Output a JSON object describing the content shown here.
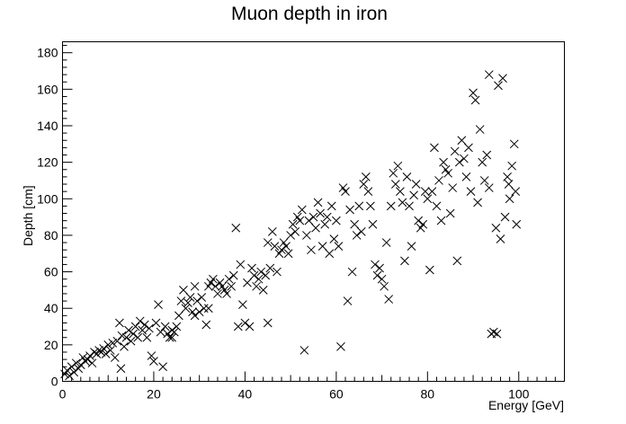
{
  "chart_data": {
    "type": "scatter",
    "title": "Muon depth in iron",
    "xlabel": "Energy [GeV]",
    "ylabel": "Depth [cm]",
    "xlim": [
      0,
      110
    ],
    "ylim": [
      0,
      186
    ],
    "x_ticks": [
      0,
      20,
      40,
      60,
      80,
      100
    ],
    "y_ticks": [
      0,
      20,
      40,
      60,
      80,
      100,
      120,
      140,
      160,
      180
    ],
    "grid": false,
    "legend": "none",
    "marker": "x",
    "marker_color": "#000000",
    "series": [
      {
        "points": [
          [
            0.5,
            4
          ],
          [
            1.0,
            6
          ],
          [
            1.5,
            3
          ],
          [
            2.0,
            8
          ],
          [
            2.5,
            5
          ],
          [
            3.0,
            10
          ],
          [
            3.5,
            7
          ],
          [
            4.0,
            9
          ],
          [
            4.5,
            13
          ],
          [
            5.0,
            11
          ],
          [
            5.5,
            12
          ],
          [
            6.0,
            14
          ],
          [
            6.5,
            10
          ],
          [
            7.0,
            16
          ],
          [
            7.5,
            15
          ],
          [
            8.0,
            17
          ],
          [
            8.5,
            16
          ],
          [
            9.0,
            18
          ],
          [
            9.5,
            15
          ],
          [
            10.0,
            20
          ],
          [
            10.5,
            17
          ],
          [
            11.0,
            21
          ],
          [
            11.5,
            13
          ],
          [
            12.0,
            22
          ],
          [
            12.5,
            32
          ],
          [
            12.8,
            7
          ],
          [
            13.0,
            25
          ],
          [
            13.5,
            19
          ],
          [
            14.0,
            24
          ],
          [
            14.5,
            28
          ],
          [
            15.0,
            22
          ],
          [
            15.5,
            26
          ],
          [
            16.0,
            30
          ],
          [
            16.5,
            24
          ],
          [
            17.0,
            33
          ],
          [
            17.5,
            28
          ],
          [
            18.0,
            31
          ],
          [
            18.5,
            24
          ],
          [
            19.0,
            29
          ],
          [
            19.5,
            14
          ],
          [
            20.0,
            11
          ],
          [
            20.5,
            32
          ],
          [
            21.0,
            42
          ],
          [
            21.5,
            27
          ],
          [
            22.0,
            8
          ],
          [
            22.5,
            30
          ],
          [
            23.0,
            26
          ],
          [
            23.5,
            24
          ],
          [
            24.0,
            28
          ],
          [
            24.5,
            27
          ],
          [
            25.0,
            30
          ],
          [
            25.5,
            36
          ],
          [
            26.0,
            44
          ],
          [
            26.5,
            50
          ],
          [
            27.0,
            40
          ],
          [
            27.5,
            43
          ],
          [
            28.0,
            46
          ],
          [
            28.5,
            38
          ],
          [
            29.0,
            52
          ],
          [
            29.5,
            44
          ],
          [
            30.0,
            38
          ],
          [
            30.5,
            46
          ],
          [
            31.0,
            40
          ],
          [
            31.5,
            31
          ],
          [
            32.0,
            52
          ],
          [
            32.5,
            54
          ],
          [
            33.0,
            56
          ],
          [
            33.5,
            52
          ],
          [
            34.0,
            48
          ],
          [
            34.5,
            54
          ],
          [
            35.0,
            52
          ],
          [
            35.5,
            50
          ],
          [
            36.0,
            48
          ],
          [
            36.5,
            56
          ],
          [
            37.0,
            52
          ],
          [
            37.5,
            58
          ],
          [
            38.0,
            84
          ],
          [
            38.5,
            30
          ],
          [
            39.0,
            64
          ],
          [
            39.5,
            42
          ],
          [
            40.0,
            32
          ],
          [
            40.5,
            54
          ],
          [
            41.0,
            30
          ],
          [
            41.5,
            62
          ],
          [
            42.0,
            58
          ],
          [
            42.5,
            52
          ],
          [
            43.0,
            56
          ],
          [
            43.5,
            60
          ],
          [
            44.0,
            50
          ],
          [
            44.5,
            58
          ],
          [
            45.0,
            76
          ],
          [
            45.5,
            62
          ],
          [
            46.0,
            82
          ],
          [
            46.5,
            74
          ],
          [
            47.0,
            60
          ],
          [
            47.5,
            70
          ],
          [
            48.0,
            72
          ],
          [
            48.5,
            76
          ],
          [
            49.0,
            74
          ],
          [
            49.5,
            70
          ],
          [
            50.0,
            80
          ],
          [
            50.5,
            86
          ],
          [
            51.0,
            82
          ],
          [
            51.5,
            90
          ],
          [
            52.0,
            88
          ],
          [
            52.5,
            94
          ],
          [
            53.0,
            17
          ],
          [
            53.5,
            80
          ],
          [
            54.0,
            88
          ],
          [
            54.5,
            72
          ],
          [
            55.0,
            90
          ],
          [
            55.5,
            84
          ],
          [
            56.0,
            98
          ],
          [
            56.5,
            92
          ],
          [
            57.0,
            74
          ],
          [
            57.5,
            86
          ],
          [
            58.0,
            90
          ],
          [
            58.5,
            70
          ],
          [
            59.0,
            96
          ],
          [
            59.5,
            78
          ],
          [
            60.0,
            88
          ],
          [
            60.5,
            74
          ],
          [
            61.0,
            19
          ],
          [
            61.5,
            106
          ],
          [
            62.0,
            104
          ],
          [
            62.5,
            44
          ],
          [
            63.0,
            94
          ],
          [
            63.5,
            60
          ],
          [
            64.0,
            86
          ],
          [
            64.5,
            80
          ],
          [
            65.0,
            96
          ],
          [
            65.5,
            82
          ],
          [
            66.0,
            108
          ],
          [
            66.5,
            112
          ],
          [
            67.0,
            104
          ],
          [
            67.5,
            96
          ],
          [
            68.0,
            86
          ],
          [
            68.5,
            64
          ],
          [
            69.0,
            58
          ],
          [
            69.5,
            62
          ],
          [
            70.0,
            56
          ],
          [
            70.5,
            52
          ],
          [
            71.0,
            76
          ],
          [
            71.5,
            45
          ],
          [
            72.0,
            96
          ],
          [
            72.5,
            114
          ],
          [
            73.0,
            108
          ],
          [
            73.5,
            118
          ],
          [
            74.0,
            104
          ],
          [
            74.5,
            98
          ],
          [
            75.0,
            66
          ],
          [
            75.5,
            112
          ],
          [
            76.0,
            96
          ],
          [
            76.5,
            74
          ],
          [
            77.0,
            102
          ],
          [
            77.5,
            108
          ],
          [
            78.0,
            88
          ],
          [
            78.5,
            84
          ],
          [
            79.0,
            86
          ],
          [
            79.5,
            104
          ],
          [
            80.0,
            100
          ],
          [
            80.5,
            61
          ],
          [
            81.0,
            104
          ],
          [
            81.5,
            128
          ],
          [
            82.0,
            96
          ],
          [
            82.5,
            110
          ],
          [
            83.0,
            88
          ],
          [
            83.5,
            120
          ],
          [
            84.0,
            116
          ],
          [
            84.5,
            114
          ],
          [
            85.0,
            92
          ],
          [
            85.5,
            106
          ],
          [
            86.0,
            126
          ],
          [
            86.5,
            66
          ],
          [
            87.0,
            120
          ],
          [
            87.5,
            132
          ],
          [
            88.0,
            122
          ],
          [
            88.5,
            112
          ],
          [
            89.0,
            128
          ],
          [
            89.5,
            104
          ],
          [
            90.0,
            158
          ],
          [
            90.5,
            154
          ],
          [
            91.0,
            98
          ],
          [
            91.5,
            138
          ],
          [
            92.0,
            120
          ],
          [
            92.5,
            110
          ],
          [
            93.0,
            124
          ],
          [
            93.5,
            106
          ],
          [
            94.0,
            26
          ],
          [
            94.5,
            27
          ],
          [
            95.0,
            84
          ],
          [
            95.5,
            162
          ],
          [
            96.0,
            78
          ],
          [
            96.5,
            166
          ],
          [
            97.0,
            90
          ],
          [
            97.5,
            112
          ],
          [
            98.0,
            100
          ],
          [
            98.5,
            118
          ],
          [
            99.0,
            130
          ],
          [
            99.5,
            86
          ],
          [
            93.5,
            168
          ],
          [
            95.2,
            26
          ],
          [
            97.8,
            108
          ],
          [
            99.3,
            104
          ],
          [
            45.0,
            32
          ],
          [
            32.0,
            40
          ],
          [
            29.0,
            36
          ],
          [
            24.0,
            24
          ]
        ]
      }
    ]
  }
}
